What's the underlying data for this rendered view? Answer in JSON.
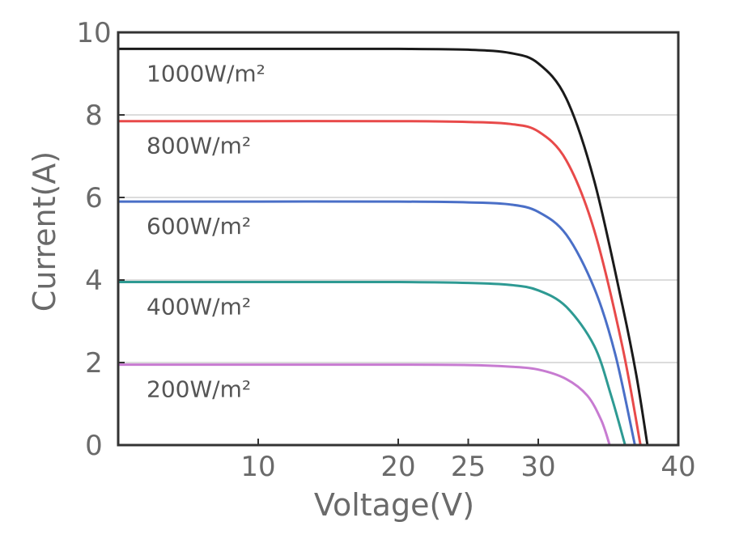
{
  "chart_data": {
    "type": "line",
    "xlabel": "Voltage(V)",
    "ylabel": "Current(A)",
    "xlim": [
      0,
      40
    ],
    "ylim": [
      0,
      10
    ],
    "x_ticks": [
      "10",
      "20",
      "25",
      "30",
      "40"
    ],
    "y_ticks": [
      "0",
      "2",
      "4",
      "6",
      "8",
      "10"
    ],
    "grid": "horizontal",
    "series": [
      {
        "name": "1000W/m²",
        "color": "#1a1a1a",
        "isc": 9.6,
        "voc": 37.8,
        "x": [
          0,
          10,
          20,
          25,
          28,
          30,
          32,
          34,
          36,
          37,
          37.8
        ],
        "y": [
          9.6,
          9.6,
          9.6,
          9.58,
          9.5,
          9.25,
          8.4,
          6.4,
          3.4,
          1.7,
          0
        ]
      },
      {
        "name": "800W/m²",
        "color": "#e84a4a",
        "isc": 7.85,
        "voc": 37.3,
        "x": [
          0,
          10,
          20,
          25,
          28,
          30,
          32,
          34,
          36,
          37.3
        ],
        "y": [
          7.85,
          7.85,
          7.85,
          7.83,
          7.78,
          7.6,
          6.9,
          5.2,
          2.4,
          0
        ]
      },
      {
        "name": "600W/m²",
        "color": "#4a6fc7",
        "isc": 5.9,
        "voc": 36.9,
        "x": [
          0,
          10,
          20,
          25,
          28,
          30,
          32,
          34,
          35.5,
          36.9
        ],
        "y": [
          5.9,
          5.9,
          5.9,
          5.88,
          5.83,
          5.65,
          5.1,
          3.8,
          2.2,
          0
        ]
      },
      {
        "name": "400W/m²",
        "color": "#2e9a93",
        "isc": 3.95,
        "voc": 36.2,
        "x": [
          0,
          10,
          20,
          25,
          28,
          30,
          32,
          34,
          35.2,
          36.2
        ],
        "y": [
          3.95,
          3.95,
          3.95,
          3.93,
          3.88,
          3.75,
          3.35,
          2.4,
          1.2,
          0
        ]
      },
      {
        "name": "200W/m²",
        "color": "#c77bd1",
        "isc": 1.95,
        "voc": 35.1,
        "x": [
          0,
          10,
          20,
          25,
          28,
          30,
          32,
          33.5,
          34.5,
          35.1
        ],
        "y": [
          1.95,
          1.95,
          1.95,
          1.94,
          1.9,
          1.83,
          1.6,
          1.2,
          0.6,
          0
        ]
      }
    ]
  }
}
